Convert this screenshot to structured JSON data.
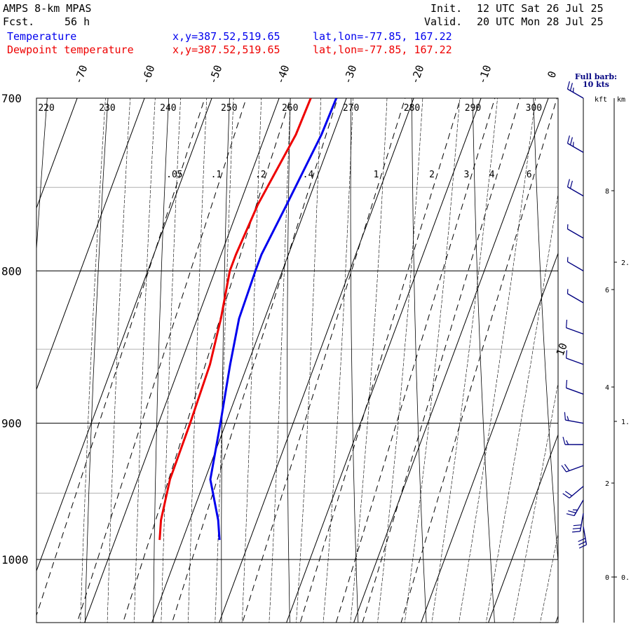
{
  "header": {
    "model": "AMPS 8-km MPAS",
    "fcst_label": "Fcst.",
    "fcst_value": "56 h",
    "init_label": "Init.",
    "init_value": "12 UTC Sat 26 Jul 25",
    "valid_label": "Valid.",
    "valid_value": "20 UTC Mon 28 Jul 25",
    "temp_label": "Temperature",
    "dew_label": "Dewpoint temperature",
    "temp_xy": "x,y=387.52,519.65",
    "temp_latlon": "lat,lon=-77.85, 167.22",
    "dew_xy": "x,y=387.52,519.65",
    "dew_latlon": "lat,lon=-77.85, 167.22"
  },
  "barb_legend": {
    "line1": "Full barb:",
    "line2": "10 kts",
    "kft_label": "kft",
    "km_label": "km"
  },
  "colors": {
    "temperature": "#0000ee",
    "dewpoint": "#ee0000",
    "barb": "#000080",
    "grid": "#000000",
    "minor_grid": "#b0b0b0"
  },
  "chart_data": {
    "type": "line",
    "subtype": "skew-T log-p sounding",
    "y_axis": {
      "quantity": "pressure",
      "range": [
        700,
        1040
      ],
      "log": true,
      "ticks": [
        "700",
        "800",
        "900",
        "1000"
      ]
    },
    "isotherm_labels": [
      "-70",
      "-60",
      "-50",
      "-40",
      "-30",
      "-20",
      "-10",
      "0",
      "10"
    ],
    "isotherms_c": [
      -70,
      -60,
      -50,
      -40,
      -30,
      -20,
      -10,
      0,
      10
    ],
    "dry_adiabats_k": [
      220,
      230,
      240,
      250,
      260,
      270,
      280,
      290,
      300
    ],
    "dry_adiabat_labels": [
      "220",
      "230",
      "240",
      "250",
      "260",
      "270",
      "280",
      "290",
      "300"
    ],
    "mixing_ratios": [
      0.05,
      0.1,
      0.2,
      0.4,
      1,
      2,
      3,
      4,
      6
    ],
    "mixing_ratio_labels": [
      ".05",
      ".1",
      ".2",
      ".4",
      "1",
      "2",
      "3",
      "4",
      "6"
    ],
    "series": [
      {
        "name": "Temperature",
        "pressure": [
          700,
          720,
          760,
          790,
          800,
          830,
          860,
          900,
          940,
          970,
          985
        ],
        "values": [
          -31.5,
          -31.7,
          -33.0,
          -34.0,
          -34.0,
          -33.8,
          -32.6,
          -30.8,
          -29.2,
          -25.8,
          -24.5
        ]
      },
      {
        "name": "Dewpoint temperature",
        "pressure": [
          700,
          720,
          760,
          790,
          800,
          830,
          860,
          900,
          940,
          970,
          985
        ],
        "values": [
          -35.3,
          -35.5,
          -37.3,
          -37.8,
          -37.8,
          -36.5,
          -35.6,
          -35.3,
          -35.2,
          -34.3,
          -33.4
        ]
      }
    ],
    "height_axis_kft": [
      "8",
      "6",
      "4",
      "2",
      "0"
    ],
    "height_axis_km": [
      "2.",
      "1.",
      "0."
    ],
    "wind_barbs": [
      {
        "pressure": 700,
        "speed_kt": 25,
        "dir": 300
      },
      {
        "pressure": 730,
        "speed_kt": 25,
        "dir": 300
      },
      {
        "pressure": 755,
        "speed_kt": 20,
        "dir": 300
      },
      {
        "pressure": 780,
        "speed_kt": 5,
        "dir": 300
      },
      {
        "pressure": 800,
        "speed_kt": 5,
        "dir": 300
      },
      {
        "pressure": 820,
        "speed_kt": 5,
        "dir": 300
      },
      {
        "pressure": 840,
        "speed_kt": 10,
        "dir": 290
      },
      {
        "pressure": 860,
        "speed_kt": 10,
        "dir": 290
      },
      {
        "pressure": 880,
        "speed_kt": 10,
        "dir": 290
      },
      {
        "pressure": 900,
        "speed_kt": 15,
        "dir": 280
      },
      {
        "pressure": 915,
        "speed_kt": 15,
        "dir": 270
      },
      {
        "pressure": 930,
        "speed_kt": 20,
        "dir": 250
      },
      {
        "pressure": 945,
        "speed_kt": 20,
        "dir": 230
      },
      {
        "pressure": 955,
        "speed_kt": 25,
        "dir": 210
      },
      {
        "pressure": 965,
        "speed_kt": 30,
        "dir": 190
      },
      {
        "pressure": 975,
        "speed_kt": 30,
        "dir": 170
      }
    ]
  }
}
